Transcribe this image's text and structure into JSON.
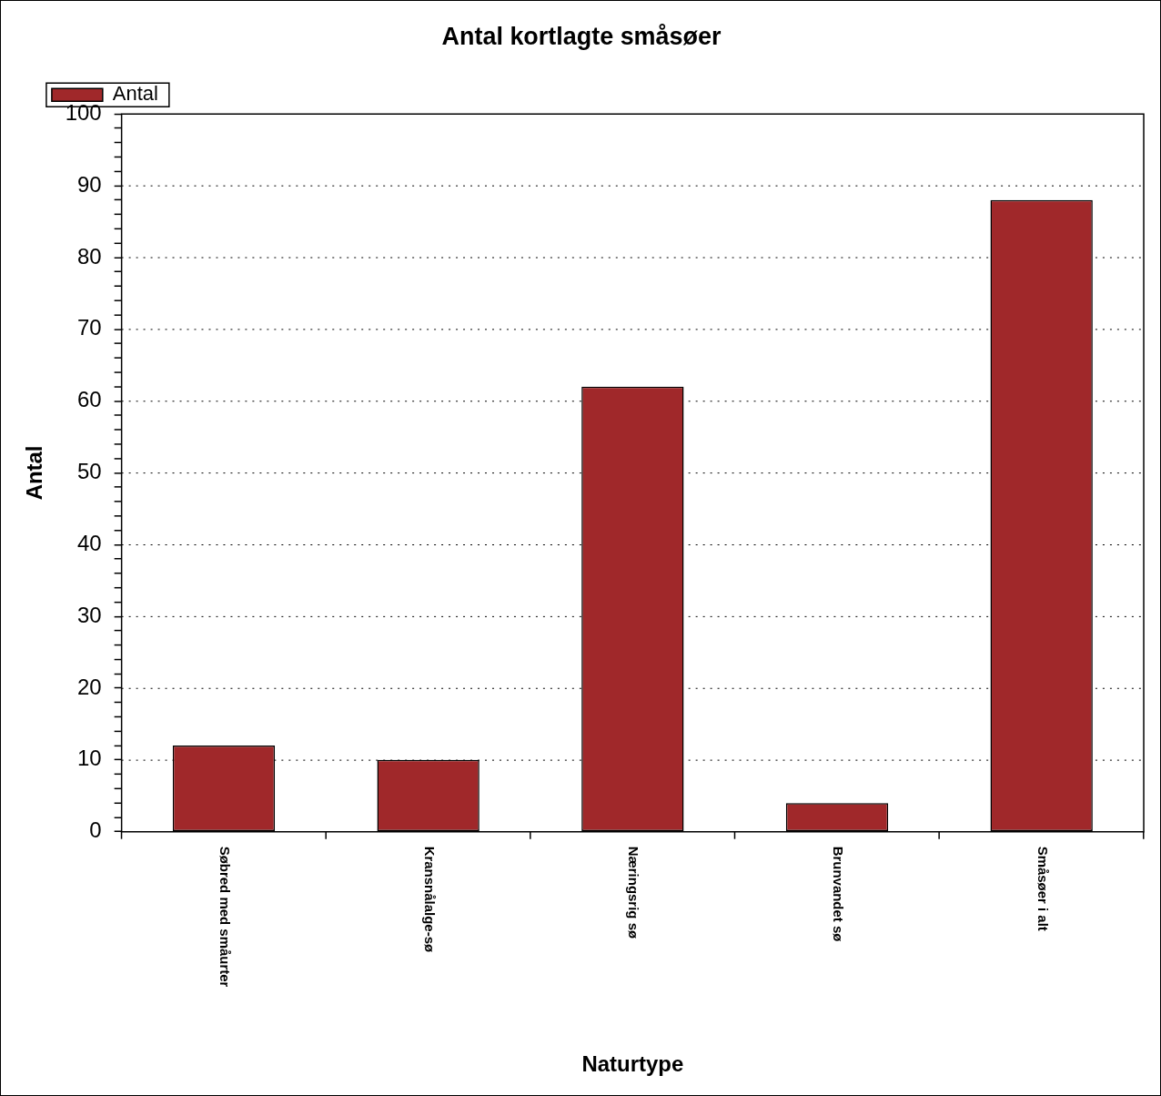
{
  "chart_data": {
    "type": "bar",
    "title": "Antal kortlagte småsøer",
    "xlabel": "Naturtype",
    "ylabel": "Antal",
    "categories": [
      "Søbred med småurter",
      "Kransnålalge-sø",
      "Næringsrig sø",
      "Brunvandet sø",
      "Småsøer i alt"
    ],
    "series": [
      {
        "name": "Antal",
        "color": "#a0282a",
        "values": [
          12,
          10,
          62,
          4,
          88
        ]
      }
    ],
    "ylim": [
      0,
      100
    ],
    "yticks": [
      0,
      {
        "value": 2,
        "label": null
      },
      {
        "value": 4,
        "label": null
      },
      {
        "value": 6,
        "label": null
      },
      {
        "value": 8,
        "label": null
      },
      10,
      {
        "value": 12,
        "label": null
      },
      {
        "value": 14,
        "label": null
      },
      {
        "value": 16,
        "label": null
      },
      {
        "value": 18,
        "label": null
      },
      20,
      {
        "value": 22,
        "label": null
      },
      {
        "value": 24,
        "label": null
      },
      {
        "value": 26,
        "label": null
      },
      {
        "value": 28,
        "label": null
      },
      30,
      {
        "value": 32,
        "label": null
      },
      {
        "value": 34,
        "label": null
      },
      {
        "value": 36,
        "label": null
      },
      {
        "value": 38,
        "label": null
      },
      40,
      {
        "value": 42,
        "label": null
      },
      {
        "value": 44,
        "label": null
      },
      {
        "value": 46,
        "label": null
      },
      {
        "value": 48,
        "label": null
      },
      50,
      {
        "value": 52,
        "label": null
      },
      {
        "value": 54,
        "label": null
      },
      {
        "value": 56,
        "label": null
      },
      {
        "value": 58,
        "label": null
      },
      60,
      {
        "value": 62,
        "label": null
      },
      {
        "value": 64,
        "label": null
      },
      {
        "value": 66,
        "label": null
      },
      {
        "value": 68,
        "label": null
      },
      70,
      {
        "value": 72,
        "label": null
      },
      {
        "value": 74,
        "label": null
      },
      {
        "value": 76,
        "label": null
      },
      {
        "value": 78,
        "label": null
      },
      80,
      {
        "value": 82,
        "label": null
      },
      {
        "value": 84,
        "label": null
      },
      {
        "value": 86,
        "label": null
      },
      {
        "value": 88,
        "label": null
      },
      90,
      {
        "value": 92,
        "label": null
      },
      {
        "value": 94,
        "label": null
      },
      {
        "value": 96,
        "label": null
      },
      {
        "value": 98,
        "label": null
      },
      100
    ],
    "grid": "y",
    "legend": "top left"
  }
}
